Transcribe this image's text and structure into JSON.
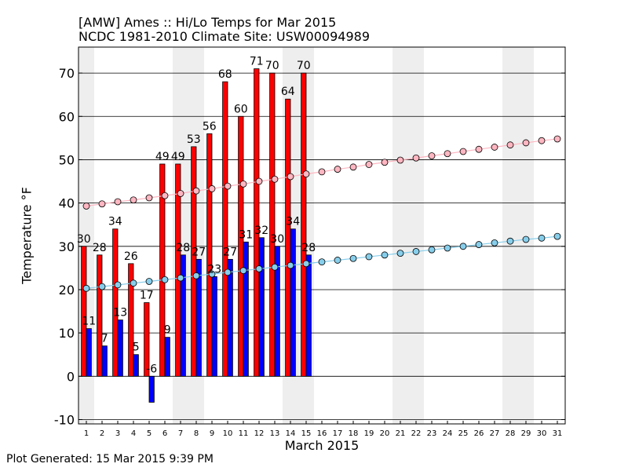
{
  "chart_data": {
    "type": "bar",
    "title": "[AMW] Ames :: Hi/Lo Temps for Mar 2015",
    "subtitle": "NCDC 1981-2010 Climate Site: USW00094989",
    "xlabel": "March 2015",
    "ylabel": "Temperature °F",
    "footer": "Plot Generated: 15 Mar 2015 9:39 PM",
    "ylim": [
      -11,
      76
    ],
    "yticks": [
      -10,
      0,
      10,
      20,
      30,
      40,
      50,
      60,
      70
    ],
    "grid": "horizontal",
    "weekend_shading": true,
    "days": [
      "1",
      "2",
      "3",
      "4",
      "5",
      "6",
      "7",
      "8",
      "9",
      "10",
      "11",
      "12",
      "13",
      "14",
      "15",
      "16",
      "17",
      "18",
      "19",
      "20",
      "21",
      "22",
      "23",
      "24",
      "25",
      "26",
      "27",
      "28",
      "29",
      "30",
      "31"
    ],
    "shaded_days": [
      1,
      7,
      8,
      14,
      15,
      21,
      22,
      28,
      29
    ],
    "series": [
      {
        "name": "High",
        "color": "#ff0000",
        "values": [
          30,
          28,
          34,
          26,
          17,
          49,
          49,
          53,
          56,
          68,
          60,
          71,
          70,
          64,
          70
        ]
      },
      {
        "name": "Low",
        "color": "#0000ff",
        "values": [
          11,
          7,
          13,
          5,
          -6,
          9,
          28,
          27,
          23,
          27,
          31,
          32,
          30,
          34,
          28
        ]
      }
    ],
    "climate_high": {
      "color": "#ffb6c1",
      "values": [
        39.3,
        39.8,
        40.3,
        40.7,
        41.2,
        41.7,
        42.2,
        42.8,
        43.3,
        43.9,
        44.4,
        45.0,
        45.5,
        46.1,
        46.7,
        47.2,
        47.8,
        48.3,
        48.9,
        49.4,
        49.9,
        50.4,
        50.9,
        51.4,
        51.9,
        52.4,
        52.9,
        53.4,
        53.9,
        54.4,
        54.8
      ]
    },
    "climate_low": {
      "color": "#87ceeb",
      "values": [
        20.3,
        20.7,
        21.1,
        21.5,
        21.9,
        22.3,
        22.7,
        23.2,
        23.6,
        24.0,
        24.4,
        24.8,
        25.2,
        25.6,
        26.0,
        26.4,
        26.8,
        27.2,
        27.6,
        28.0,
        28.4,
        28.8,
        29.2,
        29.6,
        30.0,
        30.4,
        30.8,
        31.2,
        31.6,
        31.9,
        32.3
      ]
    }
  }
}
